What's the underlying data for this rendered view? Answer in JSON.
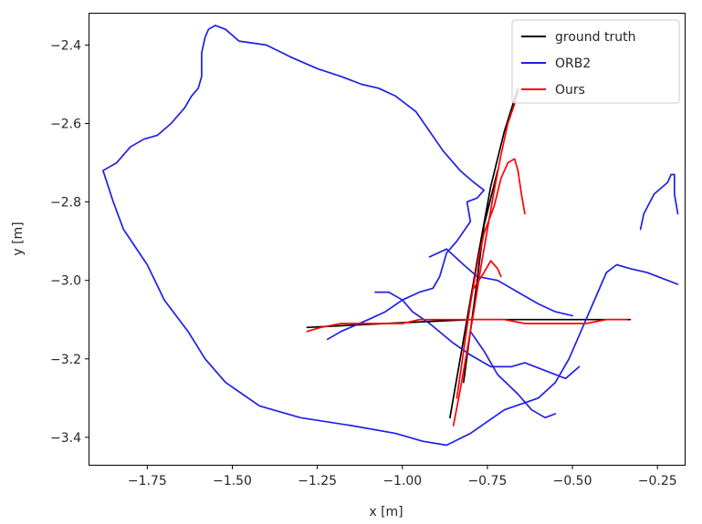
{
  "chart_data": {
    "type": "line",
    "title": "",
    "xlabel": "x [m]",
    "ylabel": "y [m]",
    "xlim": [
      -1.92,
      -0.17
    ],
    "ylim": [
      -3.47,
      -2.32
    ],
    "xticks": [
      -1.75,
      -1.5,
      -1.25,
      -1.0,
      -0.75,
      -0.5,
      -0.25
    ],
    "xtick_labels": [
      "−1.75",
      "−1.50",
      "−1.25",
      "−1.00",
      "−0.75",
      "−0.50",
      "−0.25"
    ],
    "yticks": [
      -2.4,
      -2.6,
      -2.8,
      -3.0,
      -3.2,
      -3.4
    ],
    "ytick_labels": [
      "−2.4",
      "−2.6",
      "−2.8",
      "−3.0",
      "−3.2",
      "−3.4"
    ],
    "grid": false,
    "legend": "top-right",
    "series": [
      {
        "name": "ground truth",
        "color": "#000000",
        "points": [
          [
            -1.28,
            -3.12
          ],
          [
            -1.05,
            -3.11
          ],
          [
            -0.8,
            -3.1
          ],
          [
            -0.55,
            -3.1
          ],
          [
            -0.33,
            -3.1
          ],
          null,
          [
            -0.86,
            -3.35
          ],
          [
            -0.82,
            -3.15
          ],
          [
            -0.78,
            -2.95
          ],
          [
            -0.74,
            -2.76
          ],
          [
            -0.7,
            -2.62
          ],
          [
            -0.66,
            -2.51
          ],
          null,
          [
            -0.82,
            -3.26
          ],
          [
            -0.78,
            -3.0
          ],
          [
            -0.76,
            -2.86
          ],
          [
            -0.72,
            -2.72
          ]
        ]
      },
      {
        "name": "ORB2",
        "color": "#1f1fe6",
        "points": [
          [
            -1.57,
            -2.36
          ],
          [
            -1.55,
            -2.35
          ],
          [
            -1.52,
            -2.36
          ],
          [
            -1.48,
            -2.39
          ],
          [
            -1.4,
            -2.4
          ],
          [
            -1.33,
            -2.43
          ],
          [
            -1.25,
            -2.46
          ],
          [
            -1.18,
            -2.48
          ],
          [
            -1.12,
            -2.5
          ],
          [
            -1.07,
            -2.51
          ],
          [
            -1.02,
            -2.53
          ],
          [
            -0.96,
            -2.57
          ],
          [
            -0.92,
            -2.62
          ],
          [
            -0.88,
            -2.67
          ],
          [
            -0.83,
            -2.72
          ],
          [
            -0.79,
            -2.75
          ],
          [
            -0.76,
            -2.77
          ],
          [
            -0.78,
            -2.79
          ],
          [
            -0.81,
            -2.8
          ],
          [
            -0.8,
            -2.85
          ],
          [
            -0.84,
            -2.9
          ],
          [
            -0.87,
            -2.93
          ],
          [
            -0.89,
            -2.99
          ],
          [
            -0.91,
            -3.02
          ],
          [
            -0.95,
            -3.03
          ],
          [
            -1.0,
            -3.05
          ],
          [
            -1.05,
            -3.08
          ],
          [
            -1.1,
            -3.1
          ],
          [
            -1.18,
            -3.13
          ],
          [
            -1.22,
            -3.15
          ],
          null,
          [
            -1.88,
            -2.72
          ],
          [
            -1.84,
            -2.7
          ],
          [
            -1.8,
            -2.66
          ],
          [
            -1.76,
            -2.64
          ],
          [
            -1.72,
            -2.63
          ],
          [
            -1.68,
            -2.6
          ],
          [
            -1.64,
            -2.56
          ],
          [
            -1.62,
            -2.53
          ],
          [
            -1.6,
            -2.51
          ],
          [
            -1.59,
            -2.48
          ],
          [
            -1.59,
            -2.42
          ],
          [
            -1.58,
            -2.38
          ],
          [
            -1.57,
            -2.36
          ],
          null,
          [
            -1.88,
            -2.72
          ],
          [
            -1.85,
            -2.8
          ],
          [
            -1.82,
            -2.87
          ],
          [
            -1.75,
            -2.96
          ],
          [
            -1.7,
            -3.05
          ],
          [
            -1.63,
            -3.13
          ],
          [
            -1.58,
            -3.2
          ],
          [
            -1.52,
            -3.26
          ],
          [
            -1.42,
            -3.32
          ],
          [
            -1.3,
            -3.35
          ],
          [
            -1.15,
            -3.37
          ],
          [
            -1.02,
            -3.39
          ],
          [
            -0.94,
            -3.41
          ],
          [
            -0.87,
            -3.42
          ],
          [
            -0.8,
            -3.39
          ],
          [
            -0.7,
            -3.33
          ],
          [
            -0.6,
            -3.3
          ],
          [
            -0.55,
            -3.26
          ],
          [
            -0.51,
            -3.2
          ],
          [
            -0.47,
            -3.12
          ],
          [
            -0.43,
            -3.04
          ],
          [
            -0.4,
            -2.98
          ],
          [
            -0.37,
            -2.96
          ],
          [
            -0.33,
            -2.97
          ],
          [
            -0.28,
            -2.98
          ],
          [
            -0.22,
            -3.0
          ],
          [
            -0.19,
            -3.01
          ],
          null,
          [
            -0.3,
            -2.87
          ],
          [
            -0.29,
            -2.83
          ],
          [
            -0.26,
            -2.78
          ],
          [
            -0.22,
            -2.75
          ],
          [
            -0.21,
            -2.73
          ],
          [
            -0.2,
            -2.73
          ],
          [
            -0.2,
            -2.78
          ],
          [
            -0.19,
            -2.83
          ],
          null,
          [
            -0.92,
            -2.94
          ],
          [
            -0.87,
            -2.92
          ],
          [
            -0.82,
            -2.96
          ],
          [
            -0.78,
            -2.99
          ],
          [
            -0.72,
            -3.0
          ],
          [
            -0.66,
            -3.03
          ],
          [
            -0.6,
            -3.06
          ],
          [
            -0.55,
            -3.08
          ],
          [
            -0.5,
            -3.09
          ],
          null,
          [
            -1.08,
            -3.03
          ],
          [
            -1.04,
            -3.03
          ],
          [
            -1.0,
            -3.05
          ],
          [
            -0.97,
            -3.08
          ],
          [
            -0.92,
            -3.11
          ],
          [
            -0.85,
            -3.16
          ],
          [
            -0.8,
            -3.19
          ],
          [
            -0.74,
            -3.22
          ],
          [
            -0.68,
            -3.22
          ],
          [
            -0.64,
            -3.21
          ],
          [
            -0.58,
            -3.23
          ],
          [
            -0.52,
            -3.25
          ],
          [
            -0.48,
            -3.22
          ],
          null,
          [
            -0.8,
            -3.13
          ],
          [
            -0.76,
            -3.18
          ],
          [
            -0.72,
            -3.24
          ],
          [
            -0.66,
            -3.29
          ],
          [
            -0.62,
            -3.33
          ],
          [
            -0.58,
            -3.35
          ],
          [
            -0.55,
            -3.34
          ]
        ]
      },
      {
        "name": "Ours",
        "color": "#ff0000",
        "points": [
          [
            -1.28,
            -3.13
          ],
          [
            -1.24,
            -3.12
          ],
          [
            -1.18,
            -3.11
          ],
          [
            -1.12,
            -3.11
          ],
          [
            -1.05,
            -3.11
          ],
          [
            -1.0,
            -3.11
          ],
          [
            -0.95,
            -3.1
          ],
          [
            -0.88,
            -3.1
          ],
          [
            -0.82,
            -3.1
          ],
          [
            -0.76,
            -3.1
          ],
          [
            -0.7,
            -3.1
          ],
          [
            -0.64,
            -3.11
          ],
          [
            -0.58,
            -3.11
          ],
          [
            -0.52,
            -3.11
          ],
          [
            -0.46,
            -3.11
          ],
          [
            -0.4,
            -3.1
          ],
          [
            -0.34,
            -3.1
          ],
          null,
          [
            -0.85,
            -3.37
          ],
          [
            -0.83,
            -3.28
          ],
          [
            -0.81,
            -3.18
          ],
          [
            -0.79,
            -3.08
          ],
          [
            -0.77,
            -2.97
          ],
          [
            -0.75,
            -2.87
          ],
          [
            -0.73,
            -2.77
          ],
          [
            -0.71,
            -2.68
          ],
          [
            -0.69,
            -2.6
          ],
          [
            -0.67,
            -2.55
          ],
          [
            -0.66,
            -2.52
          ],
          null,
          [
            -0.84,
            -3.3
          ],
          [
            -0.82,
            -3.18
          ],
          [
            -0.8,
            -3.06
          ],
          [
            -0.78,
            -2.96
          ],
          [
            -0.76,
            -2.88
          ],
          [
            -0.73,
            -2.81
          ],
          [
            -0.71,
            -2.74
          ],
          [
            -0.69,
            -2.7
          ],
          [
            -0.67,
            -2.69
          ],
          [
            -0.66,
            -2.72
          ],
          [
            -0.65,
            -2.78
          ],
          [
            -0.64,
            -2.83
          ],
          null,
          [
            -0.79,
            -3.02
          ],
          [
            -0.76,
            -2.98
          ],
          [
            -0.74,
            -2.95
          ],
          [
            -0.72,
            -2.97
          ],
          [
            -0.71,
            -2.99
          ]
        ]
      }
    ]
  }
}
